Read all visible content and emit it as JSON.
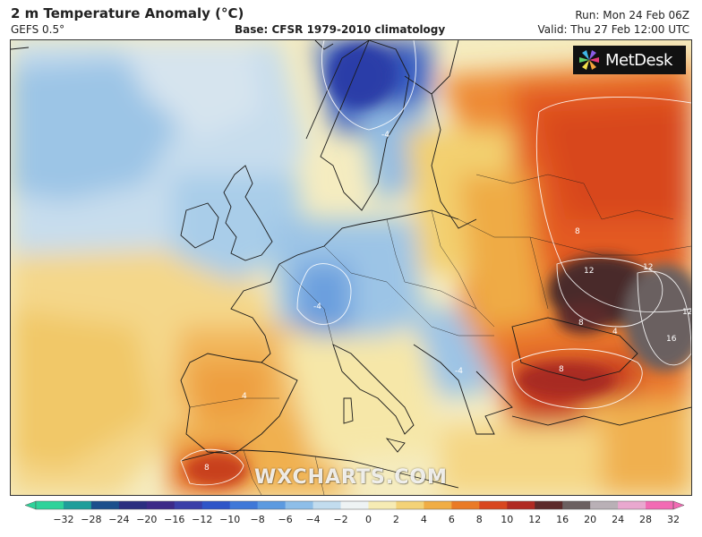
{
  "header": {
    "title": "2 m Temperature Anomaly (°C)",
    "model": "GEFS 0.5°",
    "base": "Base: CFSR 1979-2010 climatology",
    "run": "Run: Mon 24 Feb 06Z",
    "valid": "Valid: Thu 27 Feb 12:00 UTC"
  },
  "logo": {
    "text": "MetDesk"
  },
  "watermark": "WXCHARTS.COM",
  "contour_labels": [
    "12",
    "12",
    "12",
    "16",
    "8",
    "8",
    "8",
    "8",
    "4",
    "4",
    "-4",
    "-4",
    "-4"
  ],
  "colorbar": {
    "ticks": [
      "−32",
      "−28",
      "−24",
      "−20",
      "−16",
      "−12",
      "−10",
      "−8",
      "−6",
      "−4",
      "−2",
      "0",
      "2",
      "4",
      "6",
      "8",
      "10",
      "12",
      "16",
      "20",
      "24",
      "28",
      "32"
    ],
    "colors": [
      "#2fd39a",
      "#1f9e9a",
      "#1c4f8c",
      "#2b2f80",
      "#3c2a88",
      "#3a3fa8",
      "#2f55c8",
      "#3f78d8",
      "#5c9ae0",
      "#8ebee8",
      "#c2dcee",
      "#eef3f4",
      "#f6ebb4",
      "#f3d277",
      "#f0ad45",
      "#ea7a26",
      "#d8461f",
      "#b02a22",
      "#5c2a2a",
      "#6b6060",
      "#b9b0b6",
      "#e9a8cf",
      "#f26bb4"
    ]
  }
}
